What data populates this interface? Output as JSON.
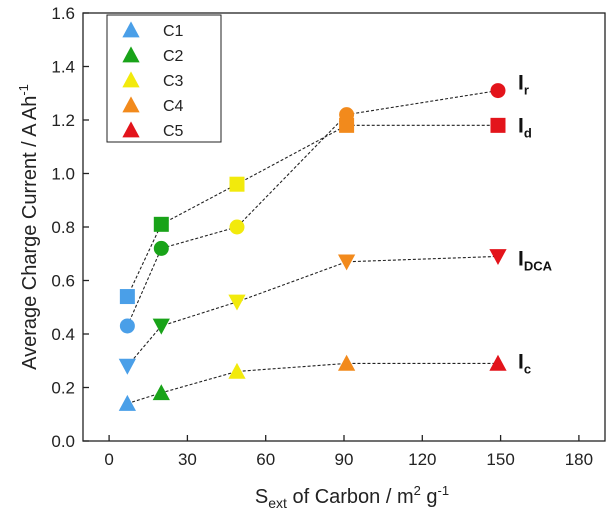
{
  "chart_data": {
    "type": "scatter",
    "xlabel": {
      "main": "S",
      "sub": "ext",
      "rest": " of Carbon / m",
      "sup": "2",
      "tail": " g",
      "sup2": "-1"
    },
    "ylabel": {
      "main": "Average Charge Current / A Ah",
      "sup": "-1"
    },
    "xlim": [
      -10,
      190
    ],
    "ylim": [
      0.0,
      1.6
    ],
    "xticks": [
      0,
      30,
      60,
      90,
      120,
      150,
      180
    ],
    "yticks": [
      0.0,
      0.2,
      0.4,
      0.6,
      0.8,
      1.0,
      1.2,
      1.4,
      1.6
    ],
    "xtick_labels": [
      "0",
      "30",
      "60",
      "90",
      "120",
      "150",
      "180"
    ],
    "ytick_labels": [
      "0.0",
      "0.2",
      "0.4",
      "0.6",
      "0.8",
      "1.0",
      "1.2",
      "1.4",
      "1.6"
    ],
    "grid": false,
    "legend_position": "top-left",
    "categories": [
      {
        "name": "C1",
        "x": 7,
        "color": "#4a9fe8"
      },
      {
        "name": "C2",
        "x": 20,
        "color": "#19a319"
      },
      {
        "name": "C3",
        "x": 49,
        "color": "#f2ea0c"
      },
      {
        "name": "C4",
        "x": 91,
        "color": "#f28a1c"
      },
      {
        "name": "C5",
        "x": 149,
        "color": "#e3141b"
      }
    ],
    "series": [
      {
        "name": "I_r",
        "label_main": "I",
        "label_sub": "r",
        "marker": "circle",
        "values": [
          0.43,
          0.72,
          0.8,
          1.22,
          1.31
        ]
      },
      {
        "name": "I_d",
        "label_main": "I",
        "label_sub": "d",
        "marker": "square",
        "values": [
          0.54,
          0.81,
          0.96,
          1.18,
          1.18
        ]
      },
      {
        "name": "I_DCA",
        "label_main": "I",
        "label_sub": "DCA",
        "marker": "triangle-down",
        "values": [
          0.28,
          0.43,
          0.52,
          0.67,
          0.69
        ]
      },
      {
        "name": "I_c",
        "label_main": "I",
        "label_sub": "c",
        "marker": "triangle-up",
        "values": [
          0.14,
          0.18,
          0.26,
          0.29,
          0.29
        ]
      }
    ]
  }
}
